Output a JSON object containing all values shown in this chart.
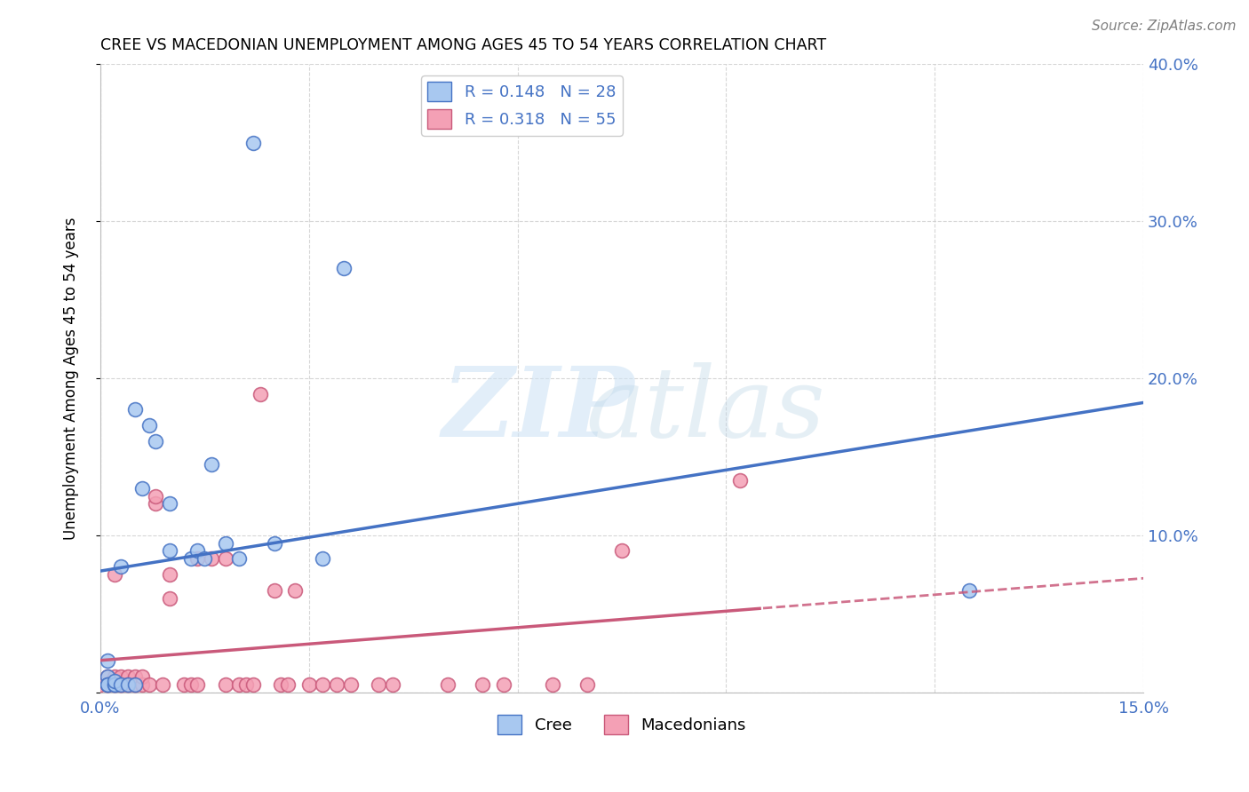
{
  "title": "CREE VS MACEDONIAN UNEMPLOYMENT AMONG AGES 45 TO 54 YEARS CORRELATION CHART",
  "source": "Source: ZipAtlas.com",
  "ylabel": "Unemployment Among Ages 45 to 54 years",
  "xlim": [
    0.0,
    0.15
  ],
  "ylim": [
    0.0,
    0.4
  ],
  "xticks": [
    0.0,
    0.03,
    0.06,
    0.09,
    0.12,
    0.15
  ],
  "yticks": [
    0.0,
    0.1,
    0.2,
    0.3,
    0.4
  ],
  "legend_r_cree": "R = 0.148",
  "legend_n_cree": "N = 28",
  "legend_r_mac": "R = 0.318",
  "legend_n_mac": "N = 55",
  "cree_color": "#A8C8F0",
  "mac_color": "#F4A0B5",
  "cree_line_color": "#4472C4",
  "mac_line_color": "#C9597A",
  "background_color": "#FFFFFF",
  "grid_color": "#CCCCCC",
  "cree_points_x": [
    0.001,
    0.001,
    0.001,
    0.001,
    0.002,
    0.002,
    0.002,
    0.003,
    0.003,
    0.004,
    0.005,
    0.005,
    0.006,
    0.007,
    0.008,
    0.01,
    0.01,
    0.013,
    0.014,
    0.015,
    0.016,
    0.018,
    0.02,
    0.022,
    0.025,
    0.032,
    0.035,
    0.125
  ],
  "cree_points_y": [
    0.01,
    0.02,
    0.005,
    0.005,
    0.005,
    0.005,
    0.007,
    0.08,
    0.005,
    0.005,
    0.18,
    0.005,
    0.13,
    0.17,
    0.16,
    0.12,
    0.09,
    0.085,
    0.09,
    0.085,
    0.145,
    0.095,
    0.085,
    0.35,
    0.095,
    0.085,
    0.27,
    0.065
  ],
  "mac_points_x": [
    0.0,
    0.001,
    0.001,
    0.001,
    0.001,
    0.002,
    0.002,
    0.002,
    0.002,
    0.003,
    0.003,
    0.003,
    0.003,
    0.004,
    0.004,
    0.004,
    0.005,
    0.005,
    0.005,
    0.006,
    0.006,
    0.007,
    0.008,
    0.008,
    0.009,
    0.01,
    0.01,
    0.012,
    0.013,
    0.014,
    0.014,
    0.016,
    0.018,
    0.018,
    0.02,
    0.021,
    0.022,
    0.023,
    0.025,
    0.026,
    0.027,
    0.028,
    0.03,
    0.032,
    0.034,
    0.036,
    0.04,
    0.042,
    0.05,
    0.055,
    0.058,
    0.065,
    0.07,
    0.075,
    0.092
  ],
  "mac_points_y": [
    0.005,
    0.005,
    0.005,
    0.01,
    0.005,
    0.005,
    0.005,
    0.01,
    0.075,
    0.005,
    0.005,
    0.01,
    0.005,
    0.005,
    0.01,
    0.005,
    0.005,
    0.01,
    0.005,
    0.005,
    0.01,
    0.005,
    0.12,
    0.125,
    0.005,
    0.06,
    0.075,
    0.005,
    0.005,
    0.085,
    0.005,
    0.085,
    0.085,
    0.005,
    0.005,
    0.005,
    0.005,
    0.19,
    0.065,
    0.005,
    0.005,
    0.065,
    0.005,
    0.005,
    0.005,
    0.005,
    0.005,
    0.005,
    0.005,
    0.005,
    0.005,
    0.005,
    0.005,
    0.09,
    0.135
  ]
}
